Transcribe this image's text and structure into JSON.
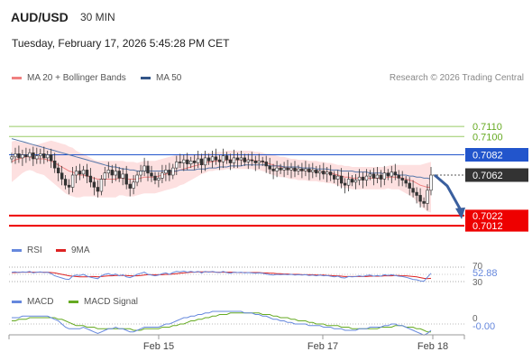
{
  "header": {
    "symbol": "AUD/USD",
    "interval": "30 MIN",
    "datetime": "Tuesday, February 17, 2026 5:45:28 PM CET"
  },
  "legend": {
    "ma20_label": "MA 20 + Bollinger Bands",
    "ma50_label": "MA 50",
    "credit": "Research © 2026 Trading Central",
    "rsi_label": "RSI",
    "rsi_ma_label": "9MA",
    "macd_label": "MACD",
    "macd_signal_label": "MACD Signal"
  },
  "colors": {
    "up": "#ffffff",
    "down": "#333333",
    "bollinger_fill": "#fde0e0",
    "ma20": "#f08080",
    "ma50": "#5577aa",
    "resistance": "#99cc66",
    "pivot": "#2255cc",
    "support": "#ee0000",
    "arrow": "#3a5f9e",
    "rsi": "#6688dd",
    "rsi_ma": "#dd2222",
    "macd": "#6688dd",
    "macd_signal": "#66aa22"
  },
  "levels": {
    "resistance_2": "0.7110",
    "resistance_1": "0.7100",
    "pivot": "0.7082",
    "last": "0.7062",
    "support_1": "0.7022",
    "support_2": "0.7012"
  },
  "rsi_panel": {
    "upper": "70",
    "lower": "30",
    "value": "52.88"
  },
  "macd_panel": {
    "zero": "0",
    "value": "-0.00"
  },
  "x_axis": {
    "ticks": [
      "Feb 15",
      "Feb 17",
      "Feb 18"
    ]
  },
  "chart_data": {
    "type": "candlestick",
    "symbol": "AUD/USD",
    "interval": "30 MIN",
    "ylim": [
      0.7005,
      0.7135
    ],
    "closes": [
      0.708,
      0.7083,
      0.7079,
      0.7082,
      0.708,
      0.7084,
      0.7078,
      0.7081,
      0.7083,
      0.7079,
      0.7082,
      0.7076,
      0.7069,
      0.7064,
      0.7058,
      0.7052,
      0.705,
      0.7062,
      0.7066,
      0.7063,
      0.7067,
      0.7061,
      0.7055,
      0.705,
      0.7046,
      0.7058,
      0.7064,
      0.7067,
      0.7062,
      0.7066,
      0.7059,
      0.7063,
      0.7053,
      0.7049,
      0.7055,
      0.7062,
      0.7066,
      0.7071,
      0.7064,
      0.7061,
      0.7057,
      0.7059,
      0.7064,
      0.7067,
      0.7062,
      0.7069,
      0.7075,
      0.7074,
      0.7077,
      0.7073,
      0.7076,
      0.7074,
      0.7078,
      0.7072,
      0.7079,
      0.7076,
      0.708,
      0.7077,
      0.7075,
      0.7081,
      0.7077,
      0.7074,
      0.7079,
      0.7077,
      0.7079,
      0.7075,
      0.7077,
      0.7076,
      0.7074,
      0.7076,
      0.7075,
      0.7071,
      0.7068,
      0.7066,
      0.7069,
      0.7067,
      0.7069,
      0.7067,
      0.7069,
      0.7066,
      0.7068,
      0.7066,
      0.7068,
      0.7065,
      0.7067,
      0.7064,
      0.7066,
      0.7063,
      0.7065,
      0.7062,
      0.7058,
      0.7061,
      0.7054,
      0.7052,
      0.7058,
      0.7055,
      0.7057,
      0.706,
      0.7057,
      0.7061,
      0.7063,
      0.7059,
      0.7062,
      0.7058,
      0.7064,
      0.7061,
      0.7065,
      0.7062,
      0.7059,
      0.7057,
      0.7054,
      0.7049,
      0.7045,
      0.7042,
      0.7036,
      0.7034,
      0.7047,
      0.7062
    ],
    "ma20": [
      0.7075,
      0.7077,
      0.7078,
      0.7079,
      0.708,
      0.708,
      0.7079,
      0.7078,
      0.7078,
      0.7078,
      0.7077,
      0.7076,
      0.7074,
      0.7072,
      0.707,
      0.7068,
      0.7066,
      0.7065,
      0.7063,
      0.7062,
      0.7062,
      0.7061,
      0.706,
      0.7059,
      0.7058,
      0.7058,
      0.7058,
      0.7058,
      0.7058,
      0.7058,
      0.7059,
      0.7059,
      0.7058,
      0.7058,
      0.7058,
      0.7058,
      0.7059,
      0.706,
      0.706,
      0.706,
      0.706,
      0.7061,
      0.7062,
      0.7063,
      0.7064,
      0.7065,
      0.7066,
      0.7067,
      0.7068,
      0.7069,
      0.707,
      0.7071,
      0.7072,
      0.7073,
      0.7074,
      0.7075,
      0.7075,
      0.7076,
      0.7076,
      0.7076,
      0.7077,
      0.7077,
      0.7077,
      0.7077,
      0.7077,
      0.7077,
      0.7077,
      0.7077,
      0.7076,
      0.7076,
      0.7075,
      0.7074,
      0.7073,
      0.7072,
      0.7071,
      0.707,
      0.707,
      0.7069,
      0.7068,
      0.7068,
      0.7067,
      0.7067,
      0.7067,
      0.7066,
      0.7066,
      0.7066,
      0.7065,
      0.7065,
      0.7064,
      0.7064,
      0.7063,
      0.7062,
      0.7061,
      0.706,
      0.706,
      0.7059,
      0.7059,
      0.7059,
      0.7059,
      0.7059,
      0.7059,
      0.7059,
      0.7059,
      0.7059,
      0.7059,
      0.706,
      0.706,
      0.706,
      0.706,
      0.7059,
      0.7058,
      0.7057,
      0.7056,
      0.7054,
      0.7052,
      0.7051,
      0.705,
      0.705
    ],
    "ma50": [
      0.7098,
      0.7097,
      0.7096,
      0.7095,
      0.7094,
      0.7093,
      0.7092,
      0.7091,
      0.709,
      0.7089,
      0.7088,
      0.7087,
      0.7086,
      0.7085,
      0.7084,
      0.7083,
      0.7082,
      0.7081,
      0.708,
      0.7079,
      0.7078,
      0.7077,
      0.7076,
      0.7075,
      0.7074,
      0.7073,
      0.7072,
      0.7071,
      0.707,
      0.707,
      0.7069,
      0.7068,
      0.7068,
      0.7067,
      0.7067,
      0.7066,
      0.7066,
      0.7066,
      0.7066,
      0.7066,
      0.7066,
      0.7066,
      0.7066,
      0.7066,
      0.7066,
      0.7066,
      0.7066,
      0.7067,
      0.7067,
      0.7067,
      0.7067,
      0.7067,
      0.7068,
      0.7068,
      0.7068,
      0.7069,
      0.7069,
      0.7069,
      0.707,
      0.707,
      0.707,
      0.7071,
      0.7071,
      0.7071,
      0.7071,
      0.7072,
      0.7072,
      0.7072,
      0.7072,
      0.7072,
      0.7072,
      0.7072,
      0.7071,
      0.7071,
      0.7071,
      0.7071,
      0.707,
      0.707,
      0.707,
      0.707,
      0.707,
      0.7069,
      0.7069,
      0.7069,
      0.7069,
      0.7068,
      0.7068,
      0.7068,
      0.7068,
      0.7067,
      0.7067,
      0.7067,
      0.7066,
      0.7066,
      0.7066,
      0.7066,
      0.7065,
      0.7065,
      0.7065,
      0.7065,
      0.7064,
      0.7064,
      0.7064,
      0.7064,
      0.7063,
      0.7063,
      0.7063,
      0.7063,
      0.7062,
      0.7062,
      0.7062,
      0.7061,
      0.7061,
      0.706,
      0.706,
      0.7059,
      0.7059,
      0.7058
    ],
    "bollinger_width": [
      0.002,
      0.0019,
      0.0017,
      0.0015,
      0.0014,
      0.0013,
      0.0013,
      0.0014,
      0.0015,
      0.0016,
      0.0018,
      0.002,
      0.0021,
      0.0022,
      0.0023,
      0.0024,
      0.0024,
      0.0024,
      0.0023,
      0.0022,
      0.0021,
      0.002,
      0.0019,
      0.0018,
      0.0018,
      0.0018,
      0.0018,
      0.0018,
      0.0018,
      0.0018,
      0.0017,
      0.0017,
      0.0017,
      0.0017,
      0.0017,
      0.0016,
      0.0016,
      0.0016,
      0.0016,
      0.0016,
      0.0016,
      0.0016,
      0.0016,
      0.0016,
      0.0016,
      0.0016,
      0.0016,
      0.0015,
      0.0015,
      0.0014,
      0.0013,
      0.0012,
      0.0011,
      0.001,
      0.001,
      0.0009,
      0.0009,
      0.0009,
      0.0009,
      0.0009,
      0.0009,
      0.0009,
      0.0009,
      0.0009,
      0.0009,
      0.0009,
      0.0009,
      0.0009,
      0.0009,
      0.0009,
      0.0009,
      0.0009,
      0.001,
      0.001,
      0.001,
      0.001,
      0.001,
      0.001,
      0.001,
      0.001,
      0.001,
      0.001,
      0.001,
      0.001,
      0.001,
      0.001,
      0.001,
      0.001,
      0.001,
      0.001,
      0.001,
      0.001,
      0.0011,
      0.0011,
      0.0011,
      0.0011,
      0.0011,
      0.0011,
      0.0011,
      0.0011,
      0.0011,
      0.0011,
      0.0011,
      0.0011,
      0.0011,
      0.0011,
      0.0012,
      0.0012,
      0.0012,
      0.0013,
      0.0014,
      0.0015,
      0.0016,
      0.0018,
      0.002,
      0.0022,
      0.0024,
      0.0025
    ],
    "rsi": [
      56,
      57,
      55,
      57,
      56,
      58,
      54,
      56,
      57,
      55,
      56,
      52,
      46,
      43,
      40,
      37,
      36,
      45,
      48,
      47,
      50,
      45,
      42,
      40,
      38,
      46,
      50,
      52,
      48,
      51,
      46,
      49,
      43,
      41,
      45,
      50,
      53,
      56,
      50,
      48,
      46,
      48,
      52,
      54,
      50,
      55,
      58,
      57,
      59,
      56,
      58,
      56,
      58,
      54,
      58,
      56,
      58,
      56,
      55,
      58,
      55,
      53,
      56,
      55,
      56,
      54,
      55,
      54,
      53,
      54,
      53,
      51,
      49,
      48,
      50,
      49,
      50,
      49,
      50,
      48,
      49,
      48,
      49,
      47,
      48,
      46,
      48,
      46,
      47,
      45,
      43,
      45,
      41,
      40,
      44,
      43,
      44,
      46,
      44,
      47,
      48,
      45,
      47,
      45,
      49,
      47,
      49,
      47,
      45,
      44,
      42,
      39,
      36,
      35,
      32,
      31,
      42,
      52.88
    ],
    "rsi_ma": [
      55,
      55,
      56,
      56,
      56,
      56,
      56,
      56,
      56,
      56,
      56,
      55,
      54,
      52,
      50,
      48,
      46,
      45,
      44,
      43,
      43,
      43,
      44,
      44,
      43,
      44,
      45,
      46,
      46,
      47,
      47,
      47,
      47,
      46,
      46,
      46,
      47,
      48,
      49,
      49,
      49,
      49,
      49,
      50,
      50,
      51,
      52,
      53,
      54,
      55,
      56,
      56,
      57,
      57,
      57,
      57,
      57,
      56,
      56,
      56,
      56,
      56,
      56,
      55,
      55,
      55,
      55,
      55,
      55,
      55,
      54,
      54,
      53,
      53,
      52,
      52,
      51,
      51,
      50,
      50,
      50,
      49,
      49,
      49,
      49,
      48,
      48,
      48,
      47,
      47,
      46,
      46,
      45,
      44,
      44,
      44,
      44,
      44,
      44,
      44,
      45,
      45,
      45,
      45,
      46,
      46,
      46,
      47,
      47,
      46,
      46,
      45,
      44,
      43,
      41,
      39,
      38,
      39
    ],
    "macd": [
      0.0004,
      0.0004,
      0.0004,
      0.0005,
      0.0005,
      0.0005,
      0.0005,
      0.0005,
      0.0005,
      0.0005,
      0.0005,
      0.0004,
      0.0003,
      0.0002,
      0.0,
      -0.0002,
      -0.0003,
      -0.0003,
      -0.0003,
      -0.0003,
      -0.0002,
      -0.0003,
      -0.0004,
      -0.0005,
      -0.0006,
      -0.0005,
      -0.0004,
      -0.0003,
      -0.0003,
      -0.0002,
      -0.0003,
      -0.0003,
      -0.0004,
      -0.0005,
      -0.0005,
      -0.0004,
      -0.0003,
      -0.0002,
      -0.0002,
      -0.0002,
      -0.0002,
      -0.0002,
      -0.0001,
      0.0,
      0.0,
      0.0001,
      0.0002,
      0.0003,
      0.0004,
      0.0004,
      0.0005,
      0.0005,
      0.0006,
      0.0006,
      0.0007,
      0.0007,
      0.0008,
      0.0008,
      0.0008,
      0.0008,
      0.0008,
      0.0008,
      0.0008,
      0.0008,
      0.0008,
      0.0007,
      0.0007,
      0.0007,
      0.0006,
      0.0006,
      0.0005,
      0.0005,
      0.0004,
      0.0003,
      0.0003,
      0.0002,
      0.0002,
      0.0001,
      0.0001,
      0.0,
      0.0,
      0.0,
      0.0,
      -0.0001,
      -0.0001,
      -0.0001,
      -0.0001,
      -0.0002,
      -0.0002,
      -0.0002,
      -0.0003,
      -0.0003,
      -0.0003,
      -0.0004,
      -0.0004,
      -0.0004,
      -0.0004,
      -0.0003,
      -0.0003,
      -0.0003,
      -0.0002,
      -0.0002,
      -0.0002,
      -0.0002,
      -0.0001,
      -0.0001,
      0.0,
      0.0,
      -0.0001,
      -0.0001,
      -0.0002,
      -0.0003,
      -0.0004,
      -0.0005,
      -0.0006,
      -0.0007,
      -0.0006,
      -0.0004
    ],
    "macd_signal": [
      0.0002,
      0.0002,
      0.0003,
      0.0003,
      0.0003,
      0.0004,
      0.0004,
      0.0004,
      0.0004,
      0.0004,
      0.0004,
      0.0004,
      0.0004,
      0.0003,
      0.0003,
      0.0002,
      0.0001,
      0.0,
      -0.0001,
      -0.0001,
      -0.0001,
      -0.0002,
      -0.0002,
      -0.0002,
      -0.0003,
      -0.0003,
      -0.0003,
      -0.0003,
      -0.0003,
      -0.0003,
      -0.0003,
      -0.0003,
      -0.0003,
      -0.0003,
      -0.0004,
      -0.0004,
      -0.0004,
      -0.0003,
      -0.0003,
      -0.0003,
      -0.0003,
      -0.0003,
      -0.0002,
      -0.0002,
      -0.0002,
      -0.0001,
      -0.0001,
      0.0,
      0.0,
      0.0001,
      0.0002,
      0.0002,
      0.0003,
      0.0003,
      0.0004,
      0.0004,
      0.0005,
      0.0005,
      0.0006,
      0.0006,
      0.0006,
      0.0007,
      0.0007,
      0.0007,
      0.0007,
      0.0007,
      0.0007,
      0.0007,
      0.0007,
      0.0007,
      0.0006,
      0.0006,
      0.0006,
      0.0005,
      0.0005,
      0.0004,
      0.0004,
      0.0004,
      0.0003,
      0.0003,
      0.0002,
      0.0002,
      0.0002,
      0.0001,
      0.0001,
      0.0,
      0.0,
      0.0,
      -0.0001,
      -0.0001,
      -0.0001,
      -0.0001,
      -0.0002,
      -0.0002,
      -0.0002,
      -0.0003,
      -0.0003,
      -0.0003,
      -0.0003,
      -0.0003,
      -0.0003,
      -0.0003,
      -0.0003,
      -0.0002,
      -0.0002,
      -0.0002,
      -0.0002,
      -0.0001,
      -0.0001,
      -0.0001,
      -0.0002,
      -0.0002,
      -0.0002,
      -0.0003,
      -0.0003,
      -0.0004,
      -0.0005,
      -0.0005
    ]
  }
}
